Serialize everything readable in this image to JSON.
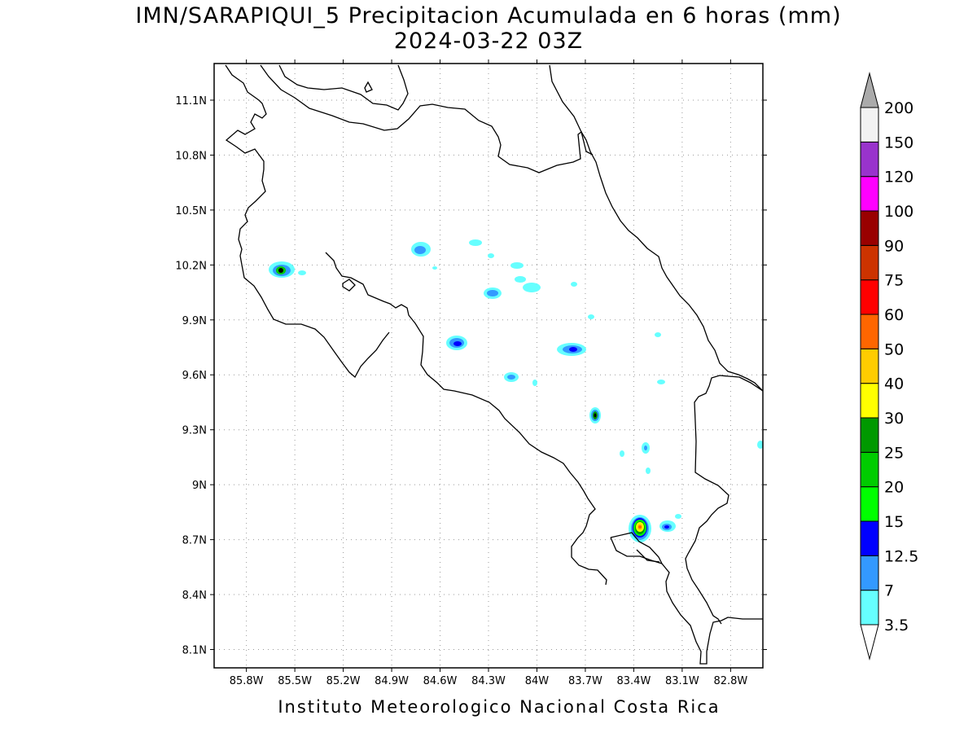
{
  "title": {
    "line1": "IMN/SARAPIQUI_5 Precipitacion Acumulada en 6 horas (mm)",
    "line2": "2024-03-22 03Z"
  },
  "footer": "Instituto Meteorologico Nacional Costa Rica",
  "map": {
    "lon_range": [
      -86.0,
      -82.6
    ],
    "lat_range": [
      8.0,
      11.3
    ],
    "lat_ticks": [
      "11.1N",
      "10.8N",
      "10.5N",
      "10.2N",
      "9.9N",
      "9.6N",
      "9.3N",
      "9N",
      "8.7N",
      "8.4N",
      "8.1N"
    ],
    "lon_ticks": [
      "85.8W",
      "85.5W",
      "85.2W",
      "84.9W",
      "84.6W",
      "84.3W",
      "84W",
      "83.7W",
      "83.4W",
      "83.1W",
      "82.8W"
    ],
    "grid": true,
    "grid_style": "dotted"
  },
  "colorbar": {
    "levels": [
      "3.5",
      "7",
      "12.5",
      "15",
      "20",
      "25",
      "30",
      "40",
      "50",
      "60",
      "75",
      "90",
      "100",
      "120",
      "150",
      "200"
    ],
    "colors": [
      "#66ffff",
      "#3399ff",
      "#0000ff",
      "#00ff00",
      "#00cc00",
      "#009900",
      "#ffff00",
      "#ffcc00",
      "#ff6600",
      "#ff0000",
      "#cc3300",
      "#990000",
      "#ff00ff",
      "#9933cc",
      "#f2f2f2",
      "#aaaaaa"
    ],
    "under_color": "#ffffff",
    "over_color": "#aaaaaa"
  }
}
